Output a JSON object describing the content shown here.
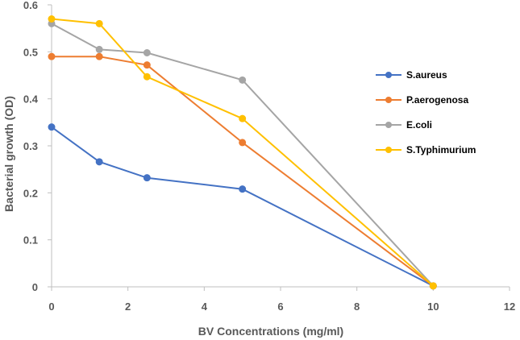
{
  "chart_data": {
    "type": "line",
    "xlabel": "BV Concentrations  (mg/ml)",
    "ylabel": "Bacterial growth (OD)",
    "xlim": [
      0,
      12
    ],
    "ylim": [
      0,
      0.6
    ],
    "x_ticks": [
      0,
      2,
      4,
      6,
      8,
      10,
      12
    ],
    "y_ticks": [
      0,
      0.1,
      0.2,
      0.3,
      0.4,
      0.5,
      0.6
    ],
    "x_tick_labels": [
      "0",
      "2",
      "4",
      "6",
      "8",
      "10",
      "12"
    ],
    "y_tick_labels": [
      "0",
      "0.1",
      "0.2",
      "0.3",
      "0.4",
      "0.5",
      "0.6"
    ],
    "grid": false,
    "legend_position": "right",
    "series": [
      {
        "name": "S.aureus",
        "color": "#4472C4",
        "x": [
          0,
          1.25,
          2.5,
          5,
          10
        ],
        "y": [
          0.34,
          0.266,
          0.232,
          0.208,
          0.002
        ]
      },
      {
        "name": "P.aerogenosa",
        "color": "#ED7D31",
        "x": [
          0,
          1.25,
          2.5,
          5,
          10
        ],
        "y": [
          0.49,
          0.49,
          0.472,
          0.307,
          0.002
        ]
      },
      {
        "name": "E.coli",
        "color": "#A5A5A5",
        "x": [
          0,
          1.25,
          2.5,
          5,
          10
        ],
        "y": [
          0.56,
          0.505,
          0.498,
          0.44,
          0.002
        ]
      },
      {
        "name": "S.Typhimurium",
        "color": "#FFC000",
        "x": [
          0,
          1.25,
          2.5,
          5,
          10
        ],
        "y": [
          0.57,
          0.56,
          0.447,
          0.358,
          0.002
        ]
      }
    ]
  }
}
